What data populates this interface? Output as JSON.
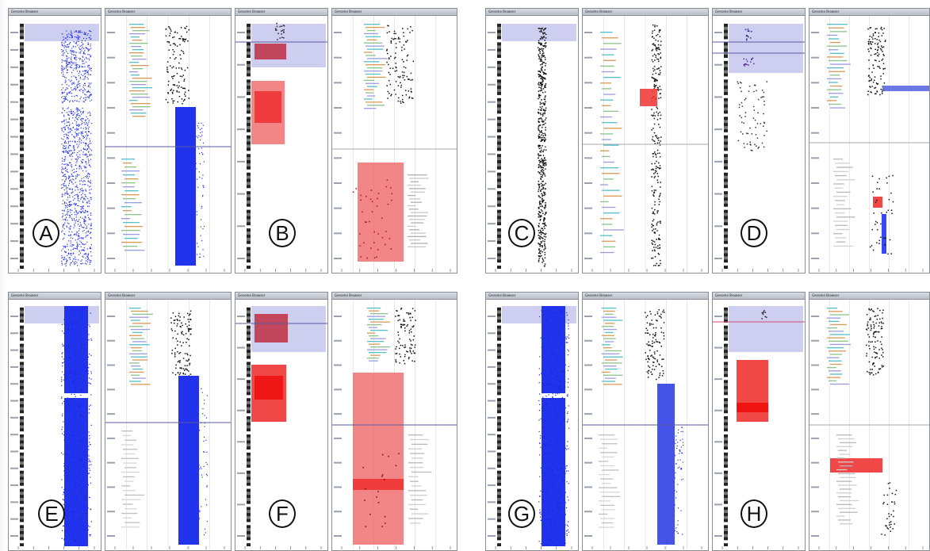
{
  "figure": {
    "panel_labels": [
      "A",
      "B",
      "C",
      "D",
      "E",
      "F",
      "G",
      "H"
    ],
    "window_title": "Genome Browser"
  },
  "colors": {
    "blue_points": "#2233ee",
    "red_region": "#ee3333",
    "pink_region": "#f07070",
    "lavender_header": "#c9c9f0",
    "gridline": "#d0d0d0",
    "hline": "#5a5aa0"
  }
}
